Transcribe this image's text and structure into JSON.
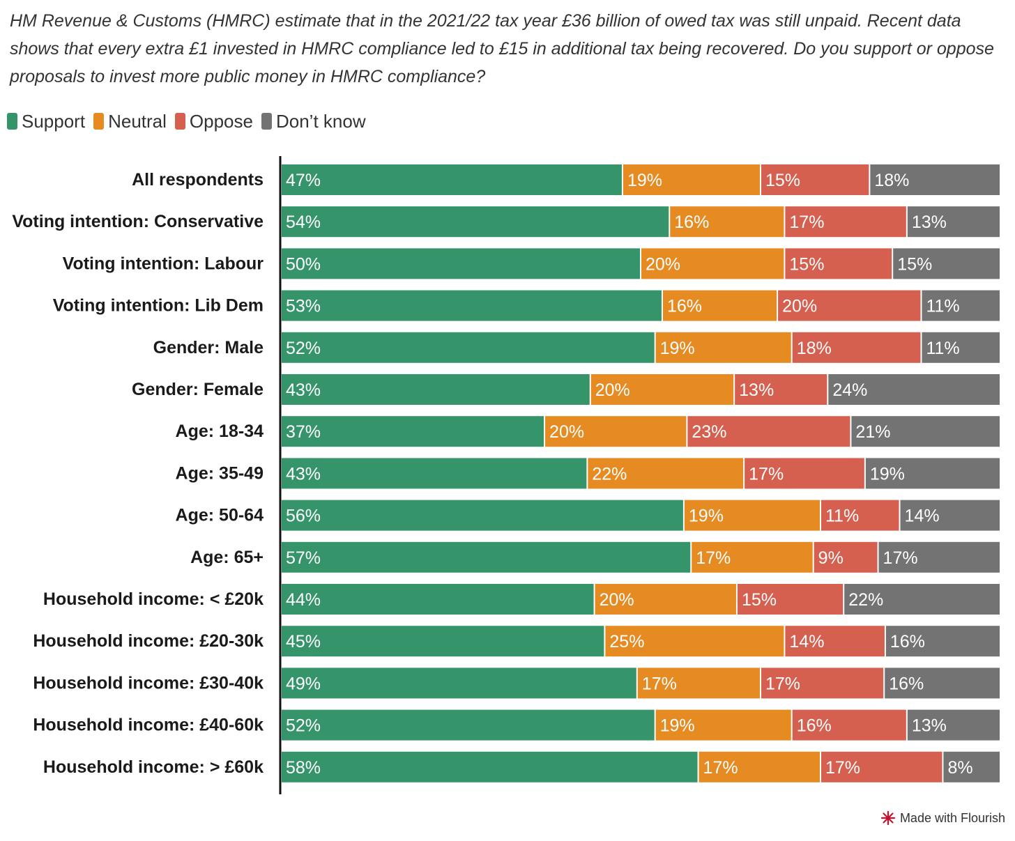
{
  "subtitle": "HM Revenue & Customs (HMRC) estimate that in the 2021/22 tax year £36 billion of owed tax was still unpaid. Recent data shows that every extra £1 invested in HMRC compliance led to £15 in additional tax being recovered. Do you support or oppose proposals to invest more public money in HMRC compliance?",
  "legend": [
    {
      "label": "Support",
      "color": "#35946a"
    },
    {
      "label": "Neutral",
      "color": "#e68a22"
    },
    {
      "label": "Oppose",
      "color": "#d6604f"
    },
    {
      "label": "Don’t know",
      "color": "#737373"
    }
  ],
  "branding": {
    "label": "Made with Flourish",
    "icon": "flourish-star-icon"
  },
  "chart_data": {
    "type": "bar",
    "orientation": "horizontal",
    "stacked": true,
    "xlim": [
      0,
      100
    ],
    "grid": false,
    "legend_position": "top-left",
    "categories": [
      "All respondents",
      "Voting intention: Conservative",
      "Voting intention: Labour",
      "Voting intention: Lib Dem",
      "Gender: Male",
      "Gender: Female",
      "Age: 18-34",
      "Age: 35-49",
      "Age: 50-64",
      "Age: 65+",
      "Household income: < £20k",
      "Household income: £20-30k",
      "Household income: £30-40k",
      "Household income: £40-60k",
      "Household income: > £60k"
    ],
    "series": [
      {
        "name": "Support",
        "color": "#35946a",
        "values": [
          47,
          54,
          50,
          53,
          52,
          43,
          37,
          43,
          56,
          57,
          44,
          45,
          49,
          52,
          58
        ]
      },
      {
        "name": "Neutral",
        "color": "#e68a22",
        "values": [
          19,
          16,
          20,
          16,
          19,
          20,
          20,
          22,
          19,
          17,
          20,
          25,
          17,
          19,
          17
        ]
      },
      {
        "name": "Oppose",
        "color": "#d6604f",
        "values": [
          15,
          17,
          15,
          20,
          18,
          13,
          23,
          17,
          11,
          9,
          15,
          14,
          17,
          16,
          17
        ]
      },
      {
        "name": "Don’t know",
        "color": "#737373",
        "values": [
          18,
          13,
          15,
          11,
          11,
          24,
          21,
          19,
          14,
          17,
          22,
          16,
          16,
          13,
          8
        ]
      }
    ]
  }
}
